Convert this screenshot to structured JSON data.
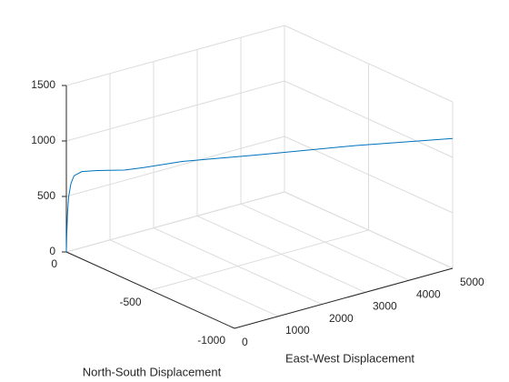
{
  "chart_data": {
    "type": "line3d",
    "xlabel": "East-West Displacement",
    "ylabel": "North-South Displacement",
    "x": [
      0,
      5,
      15,
      30,
      60,
      100,
      200,
      400,
      750,
      1000,
      1500,
      2500,
      3750,
      5000
    ],
    "y": [
      0,
      -1,
      -3,
      -6,
      -12,
      -20,
      -40,
      -80,
      -150,
      -200,
      -300,
      -500,
      -750,
      -1000
    ],
    "z": [
      0,
      150,
      350,
      500,
      620,
      690,
      730,
      745,
      760,
      790,
      860,
      950,
      1070,
      1170
    ],
    "color": "#0072bd",
    "xlim": [
      0,
      5000
    ],
    "xticks": [
      0,
      1000,
      2000,
      3000,
      4000,
      5000
    ],
    "ylim": [
      -1000,
      0
    ],
    "yticks": [
      -1000,
      -500,
      0
    ],
    "zlim": [
      0,
      1500
    ],
    "zticks": [
      0,
      500,
      1000,
      1500
    ],
    "grid": true
  }
}
